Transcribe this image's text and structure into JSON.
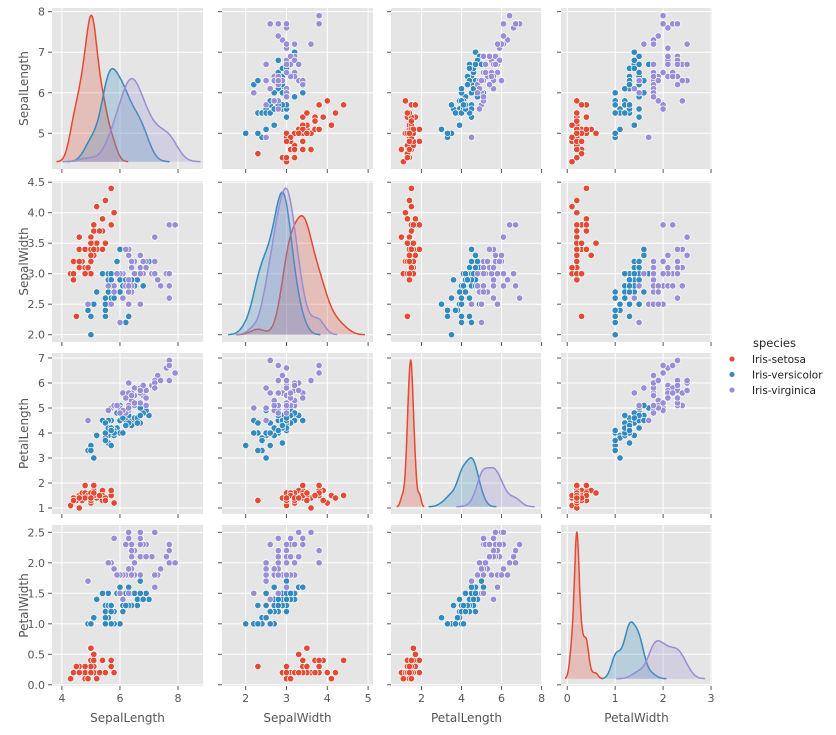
{
  "chart_data": {
    "type": "scatter",
    "kind": "pairplot",
    "diag_kind": "kde",
    "grid": true,
    "background": "#E5E5E5",
    "hue": "species",
    "variables": [
      "SepalLength",
      "SepalWidth",
      "PetalLength",
      "PetalWidth"
    ],
    "axes": [
      {
        "name": "SepalLength",
        "xlim": [
          3.66,
          8.86
        ],
        "ylim": [
          4.12,
          8.09
        ],
        "xticks": [
          "4",
          "6",
          "8"
        ],
        "xtick_values": [
          4,
          6,
          8
        ],
        "yticks": [
          "5",
          "6",
          "7",
          "8"
        ],
        "ytick_values": [
          5,
          6,
          7,
          8
        ]
      },
      {
        "name": "SepalWidth",
        "xlim": [
          1.42,
          5.12
        ],
        "ylim": [
          1.88,
          4.52
        ],
        "xticks": [
          "2",
          "3",
          "4",
          "5"
        ],
        "xtick_values": [
          2,
          3,
          4,
          5
        ],
        "yticks": [
          "2.0",
          "2.5",
          "3.0",
          "3.5",
          "4.0",
          "4.5"
        ],
        "ytick_values": [
          2.0,
          2.5,
          3.0,
          3.5,
          4.0,
          4.5
        ]
      },
      {
        "name": "PetalLength",
        "xlim": [
          0.48,
          8.02
        ],
        "ylim": [
          0.76,
          7.2
        ],
        "xticks": [
          "2",
          "4",
          "6",
          "8"
        ],
        "xtick_values": [
          2,
          4,
          6,
          8
        ],
        "yticks": [
          "1",
          "2",
          "3",
          "4",
          "5",
          "6",
          "7"
        ],
        "ytick_values": [
          1,
          2,
          3,
          4,
          5,
          6,
          7
        ]
      },
      {
        "name": "PetalWidth",
        "xlim": [
          -0.13,
          3.02
        ],
        "ylim": [
          -0.02,
          2.62
        ],
        "xticks": [
          "0",
          "1",
          "2",
          "3"
        ],
        "xtick_values": [
          0,
          1,
          2,
          3
        ],
        "yticks": [
          "0.0",
          "0.5",
          "1.0",
          "1.5",
          "2.0",
          "2.5"
        ],
        "ytick_values": [
          0,
          0.5,
          1.0,
          1.5,
          2.0,
          2.5
        ]
      }
    ],
    "legend": {
      "title": "species",
      "placement": "right"
    },
    "series": [
      {
        "name": "Iris-setosa",
        "color": "#E24A33",
        "points": [
          [
            5.1,
            3.5,
            1.4,
            0.2
          ],
          [
            4.9,
            3.0,
            1.4,
            0.2
          ],
          [
            4.7,
            3.2,
            1.3,
            0.2
          ],
          [
            4.6,
            3.1,
            1.5,
            0.2
          ],
          [
            5.0,
            3.6,
            1.4,
            0.2
          ],
          [
            5.4,
            3.9,
            1.7,
            0.4
          ],
          [
            4.6,
            3.4,
            1.4,
            0.3
          ],
          [
            5.0,
            3.4,
            1.5,
            0.2
          ],
          [
            4.4,
            2.9,
            1.4,
            0.2
          ],
          [
            4.9,
            3.1,
            1.5,
            0.1
          ],
          [
            5.4,
            3.7,
            1.5,
            0.2
          ],
          [
            4.8,
            3.4,
            1.6,
            0.2
          ],
          [
            4.8,
            3.0,
            1.4,
            0.1
          ],
          [
            4.3,
            3.0,
            1.1,
            0.1
          ],
          [
            5.8,
            4.0,
            1.2,
            0.2
          ],
          [
            5.7,
            4.4,
            1.5,
            0.4
          ],
          [
            5.4,
            3.9,
            1.3,
            0.4
          ],
          [
            5.1,
            3.5,
            1.4,
            0.3
          ],
          [
            5.7,
            3.8,
            1.7,
            0.3
          ],
          [
            5.1,
            3.8,
            1.5,
            0.3
          ],
          [
            5.4,
            3.4,
            1.7,
            0.2
          ],
          [
            5.1,
            3.7,
            1.5,
            0.4
          ],
          [
            4.6,
            3.6,
            1.0,
            0.2
          ],
          [
            5.1,
            3.3,
            1.7,
            0.5
          ],
          [
            4.8,
            3.4,
            1.9,
            0.2
          ],
          [
            5.0,
            3.0,
            1.6,
            0.2
          ],
          [
            5.0,
            3.4,
            1.6,
            0.4
          ],
          [
            5.2,
            3.5,
            1.5,
            0.2
          ],
          [
            5.2,
            3.4,
            1.4,
            0.2
          ],
          [
            4.7,
            3.2,
            1.6,
            0.2
          ],
          [
            4.8,
            3.1,
            1.6,
            0.2
          ],
          [
            5.4,
            3.4,
            1.5,
            0.4
          ],
          [
            5.2,
            4.1,
            1.5,
            0.1
          ],
          [
            5.5,
            4.2,
            1.4,
            0.2
          ],
          [
            4.9,
            3.1,
            1.5,
            0.1
          ],
          [
            5.0,
            3.2,
            1.2,
            0.2
          ],
          [
            5.5,
            3.5,
            1.3,
            0.2
          ],
          [
            4.9,
            3.1,
            1.5,
            0.1
          ],
          [
            4.4,
            3.0,
            1.3,
            0.2
          ],
          [
            5.1,
            3.4,
            1.5,
            0.2
          ],
          [
            5.0,
            3.5,
            1.3,
            0.3
          ],
          [
            4.5,
            2.3,
            1.3,
            0.3
          ],
          [
            4.4,
            3.2,
            1.3,
            0.2
          ],
          [
            5.0,
            3.5,
            1.6,
            0.6
          ],
          [
            5.1,
            3.8,
            1.9,
            0.4
          ],
          [
            4.8,
            3.0,
            1.4,
            0.3
          ],
          [
            5.1,
            3.8,
            1.6,
            0.2
          ],
          [
            4.6,
            3.2,
            1.4,
            0.2
          ],
          [
            5.3,
            3.7,
            1.5,
            0.2
          ],
          [
            5.0,
            3.3,
            1.4,
            0.2
          ]
        ]
      },
      {
        "name": "Iris-versicolor",
        "color": "#348ABD",
        "points": [
          [
            7.0,
            3.2,
            4.7,
            1.4
          ],
          [
            6.4,
            3.2,
            4.5,
            1.5
          ],
          [
            6.9,
            3.1,
            4.9,
            1.5
          ],
          [
            5.5,
            2.3,
            4.0,
            1.3
          ],
          [
            6.5,
            2.8,
            4.6,
            1.5
          ],
          [
            5.7,
            2.8,
            4.5,
            1.3
          ],
          [
            6.3,
            3.3,
            4.7,
            1.6
          ],
          [
            4.9,
            2.4,
            3.3,
            1.0
          ],
          [
            6.6,
            2.9,
            4.6,
            1.3
          ],
          [
            5.2,
            2.7,
            3.9,
            1.4
          ],
          [
            5.0,
            2.0,
            3.5,
            1.0
          ],
          [
            5.9,
            3.0,
            4.2,
            1.5
          ],
          [
            6.0,
            2.2,
            4.0,
            1.0
          ],
          [
            6.1,
            2.9,
            4.7,
            1.4
          ],
          [
            5.6,
            2.9,
            3.6,
            1.3
          ],
          [
            6.7,
            3.1,
            4.4,
            1.4
          ],
          [
            5.6,
            3.0,
            4.5,
            1.5
          ],
          [
            5.8,
            2.7,
            4.1,
            1.0
          ],
          [
            6.2,
            2.2,
            4.5,
            1.5
          ],
          [
            5.6,
            2.5,
            3.9,
            1.1
          ],
          [
            5.9,
            3.2,
            4.8,
            1.8
          ],
          [
            6.1,
            2.8,
            4.0,
            1.3
          ],
          [
            6.3,
            2.5,
            4.9,
            1.5
          ],
          [
            6.1,
            2.8,
            4.7,
            1.2
          ],
          [
            6.4,
            2.9,
            4.3,
            1.3
          ],
          [
            6.6,
            3.0,
            4.4,
            1.4
          ],
          [
            6.8,
            2.8,
            4.8,
            1.4
          ],
          [
            6.7,
            3.0,
            5.0,
            1.7
          ],
          [
            6.0,
            2.9,
            4.5,
            1.5
          ],
          [
            5.7,
            2.6,
            3.5,
            1.0
          ],
          [
            5.5,
            2.4,
            3.8,
            1.1
          ],
          [
            5.5,
            2.4,
            3.7,
            1.0
          ],
          [
            5.8,
            2.7,
            3.9,
            1.2
          ],
          [
            6.0,
            2.7,
            5.1,
            1.6
          ],
          [
            5.4,
            3.0,
            4.5,
            1.5
          ],
          [
            6.0,
            3.4,
            4.5,
            1.6
          ],
          [
            6.7,
            3.1,
            4.7,
            1.5
          ],
          [
            6.3,
            2.3,
            4.4,
            1.3
          ],
          [
            5.6,
            3.0,
            4.1,
            1.3
          ],
          [
            5.5,
            2.5,
            4.0,
            1.3
          ],
          [
            5.5,
            2.6,
            4.4,
            1.2
          ],
          [
            6.1,
            3.0,
            4.6,
            1.4
          ],
          [
            5.8,
            2.6,
            4.0,
            1.2
          ],
          [
            5.0,
            2.3,
            3.3,
            1.0
          ],
          [
            5.6,
            2.7,
            4.2,
            1.3
          ],
          [
            5.7,
            3.0,
            4.2,
            1.2
          ],
          [
            5.7,
            2.9,
            4.2,
            1.3
          ],
          [
            6.2,
            2.9,
            4.3,
            1.3
          ],
          [
            5.1,
            2.5,
            3.0,
            1.1
          ],
          [
            5.7,
            2.8,
            4.1,
            1.3
          ]
        ]
      },
      {
        "name": "Iris-virginica",
        "color": "#988ED5",
        "points": [
          [
            6.3,
            3.3,
            6.0,
            2.5
          ],
          [
            5.8,
            2.7,
            5.1,
            1.9
          ],
          [
            7.1,
            3.0,
            5.9,
            2.1
          ],
          [
            6.3,
            2.9,
            5.6,
            1.8
          ],
          [
            6.5,
            3.0,
            5.8,
            2.2
          ],
          [
            7.6,
            3.0,
            6.6,
            2.1
          ],
          [
            4.9,
            2.5,
            4.5,
            1.7
          ],
          [
            7.3,
            2.9,
            6.3,
            1.8
          ],
          [
            6.7,
            2.5,
            5.8,
            1.8
          ],
          [
            7.2,
            3.6,
            6.1,
            2.5
          ],
          [
            6.5,
            3.2,
            5.1,
            2.0
          ],
          [
            6.4,
            2.7,
            5.3,
            1.9
          ],
          [
            6.8,
            3.0,
            5.5,
            2.1
          ],
          [
            5.7,
            2.5,
            5.0,
            2.0
          ],
          [
            5.8,
            2.8,
            5.1,
            2.4
          ],
          [
            6.4,
            3.2,
            5.3,
            2.3
          ],
          [
            6.5,
            3.0,
            5.5,
            1.8
          ],
          [
            7.7,
            3.8,
            6.7,
            2.2
          ],
          [
            7.7,
            2.6,
            6.9,
            2.3
          ],
          [
            6.0,
            2.2,
            5.0,
            1.5
          ],
          [
            6.9,
            3.2,
            5.7,
            2.3
          ],
          [
            5.6,
            2.8,
            4.9,
            2.0
          ],
          [
            7.7,
            2.8,
            6.7,
            2.0
          ],
          [
            6.3,
            2.7,
            4.9,
            1.8
          ],
          [
            6.7,
            3.3,
            5.7,
            2.1
          ],
          [
            7.2,
            3.2,
            6.0,
            1.8
          ],
          [
            6.2,
            2.8,
            4.8,
            1.8
          ],
          [
            6.1,
            3.0,
            4.9,
            1.8
          ],
          [
            6.4,
            2.8,
            5.6,
            2.1
          ],
          [
            7.2,
            3.0,
            5.8,
            1.6
          ],
          [
            7.4,
            2.8,
            6.1,
            1.9
          ],
          [
            7.9,
            3.8,
            6.4,
            2.0
          ],
          [
            6.4,
            2.8,
            5.6,
            2.2
          ],
          [
            6.3,
            2.8,
            5.1,
            1.5
          ],
          [
            6.1,
            2.6,
            5.6,
            1.4
          ],
          [
            7.7,
            3.0,
            6.1,
            2.3
          ],
          [
            6.3,
            3.4,
            5.6,
            2.4
          ],
          [
            6.4,
            3.1,
            5.5,
            1.8
          ],
          [
            6.0,
            3.0,
            4.8,
            1.8
          ],
          [
            6.9,
            3.1,
            5.4,
            2.1
          ],
          [
            6.7,
            3.1,
            5.6,
            2.4
          ],
          [
            6.9,
            3.1,
            5.1,
            2.3
          ],
          [
            5.8,
            2.7,
            5.1,
            1.9
          ],
          [
            6.8,
            3.2,
            5.9,
            2.3
          ],
          [
            6.7,
            3.3,
            5.7,
            2.5
          ],
          [
            6.7,
            3.0,
            5.2,
            2.3
          ],
          [
            6.3,
            2.5,
            5.0,
            1.9
          ],
          [
            6.5,
            3.0,
            5.2,
            2.0
          ],
          [
            6.2,
            3.4,
            5.4,
            2.3
          ],
          [
            5.9,
            3.0,
            5.1,
            1.8
          ]
        ]
      }
    ]
  }
}
